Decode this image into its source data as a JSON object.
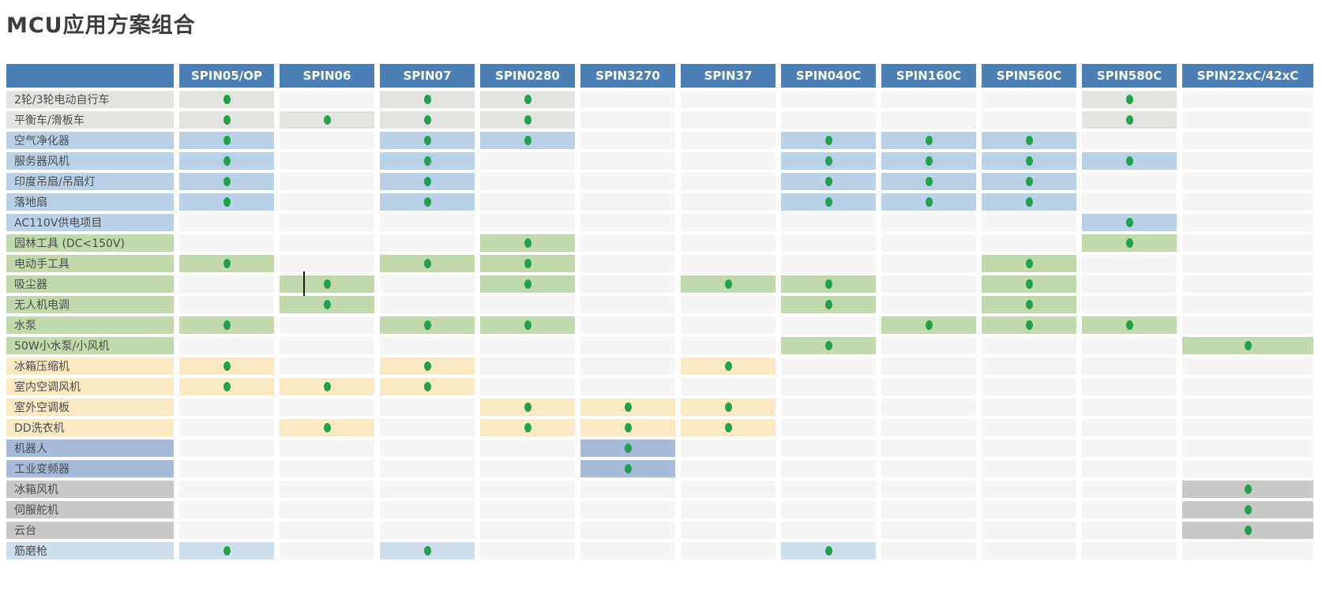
{
  "title": "MCU应用方案组合",
  "table": {
    "corner_header": "",
    "columns": [
      "SPIN05/OP",
      "SPIN06",
      "SPIN07",
      "SPIN0280",
      "SPIN3270",
      "SPIN37",
      "SPIN040C",
      "SPIN160C",
      "SPIN560C",
      "SPIN580C",
      "SPIN22xC/42xC"
    ],
    "rows": [
      {
        "label": "2轮/3轮电动自行车",
        "theme": "silver",
        "dots": [
          0,
          2,
          3,
          9
        ]
      },
      {
        "label": "平衡车/滑板车",
        "theme": "silver",
        "dots": [
          0,
          1,
          2,
          3,
          9
        ]
      },
      {
        "label": "空气净化器",
        "theme": "blue",
        "dots": [
          0,
          2,
          3,
          6,
          7,
          8
        ]
      },
      {
        "label": "服务器风机",
        "theme": "blue",
        "dots": [
          0,
          2,
          6,
          7,
          8,
          9
        ]
      },
      {
        "label": "印度吊扇/吊扇灯",
        "theme": "blue",
        "dots": [
          0,
          2,
          6,
          7,
          8
        ]
      },
      {
        "label": "落地扇",
        "theme": "blue",
        "dots": [
          0,
          2,
          6,
          7,
          8
        ]
      },
      {
        "label": "AC110V供电项目",
        "theme": "blue",
        "dots": [
          9
        ]
      },
      {
        "label": "园林工具 (DC<150V)",
        "theme": "green",
        "dots": [
          3,
          9
        ]
      },
      {
        "label": "电动手工具",
        "theme": "green",
        "dots": [
          0,
          2,
          3,
          8
        ]
      },
      {
        "label": "吸尘器",
        "theme": "green",
        "dots": [
          1,
          3,
          5,
          6,
          8
        ]
      },
      {
        "label": "无人机电调",
        "theme": "green",
        "dots": [
          1,
          6,
          8
        ]
      },
      {
        "label": "水泵",
        "theme": "green",
        "dots": [
          0,
          2,
          3,
          7,
          8,
          9
        ]
      },
      {
        "label": "50W小水泵/小风机",
        "theme": "green",
        "dots": [
          6,
          10
        ]
      },
      {
        "label": "冰箱压缩机",
        "theme": "yellow",
        "dots": [
          0,
          2,
          5
        ]
      },
      {
        "label": "室内空调风机",
        "theme": "yellow",
        "dots": [
          0,
          1,
          2
        ]
      },
      {
        "label": "室外空调板",
        "theme": "yellow",
        "dots": [
          3,
          4,
          5
        ]
      },
      {
        "label": "DD洗衣机",
        "theme": "yellow",
        "dots": [
          1,
          3,
          4,
          5
        ]
      },
      {
        "label": "机器人",
        "theme": "periwinkle",
        "dots": [
          4
        ]
      },
      {
        "label": "工业变频器",
        "theme": "periwinkle",
        "dots": [
          4
        ]
      },
      {
        "label": "冰箱风机",
        "theme": "gray",
        "dots": [
          10
        ]
      },
      {
        "label": "伺服舵机",
        "theme": "gray",
        "dots": [
          10
        ]
      },
      {
        "label": "云台",
        "theme": "gray",
        "dots": [
          10
        ]
      },
      {
        "label": "筋磨枪",
        "theme": "lightblue",
        "dots": [
          0,
          2,
          6
        ]
      }
    ]
  },
  "cursor_artifact": {
    "row_label": "吸尘器",
    "column": "SPIN06"
  },
  "colors": {
    "header_bg": "#4b7fb5",
    "header_text": "#ffffff",
    "dot": "#21a14d",
    "empty_cell": "#f5f5f3",
    "theme_silver": "#e3e3e0",
    "theme_blue": "#b9d1e7",
    "theme_green": "#c1d9ab",
    "theme_yellow": "#fbe9c3",
    "theme_periwinkle": "#a6bbda",
    "theme_gray": "#c8c8c6",
    "theme_lightblue": "#cfdeeb",
    "title_text": "#3c3c3c"
  }
}
